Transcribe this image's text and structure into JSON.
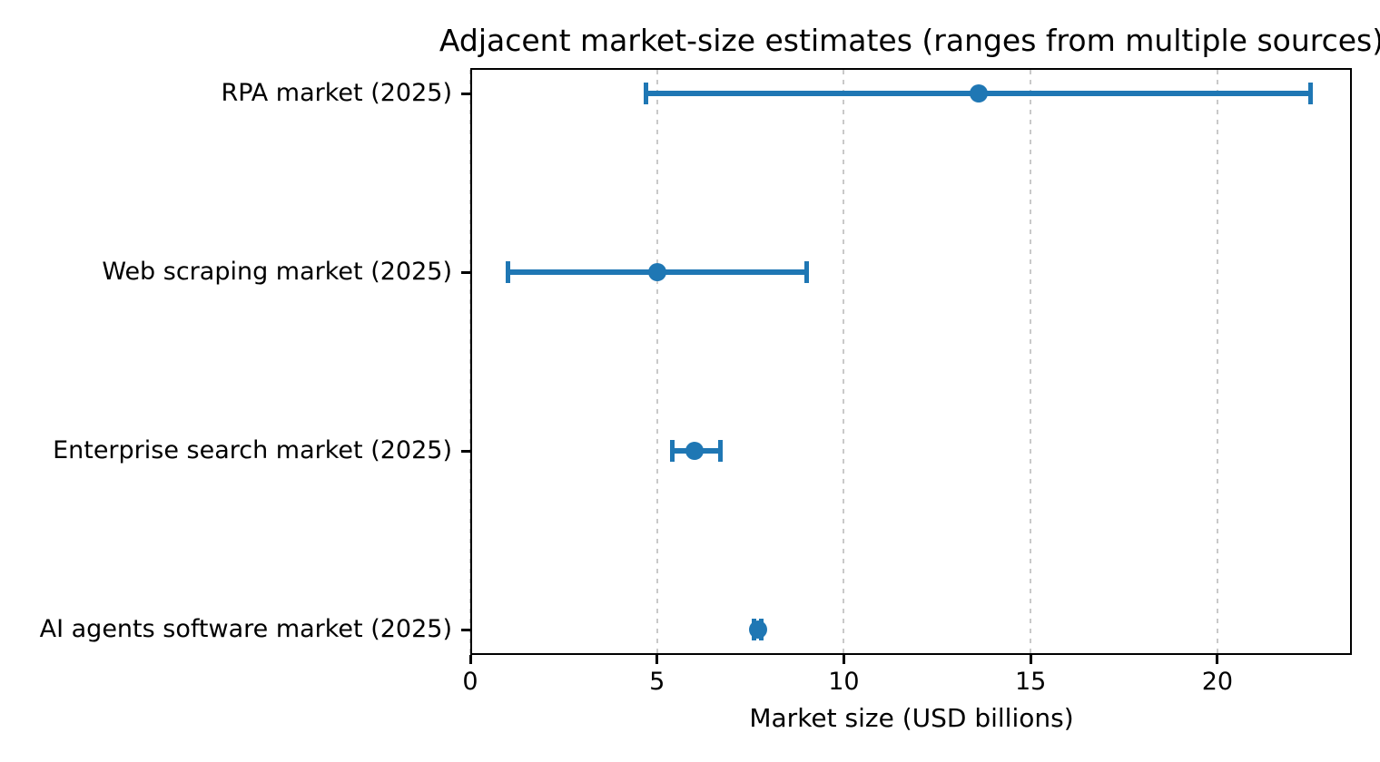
{
  "chart_data": {
    "type": "scatter",
    "subtype": "horizontal-error-bar",
    "title": "Adjacent market-size estimates (ranges from multiple sources)",
    "xlabel": "Market size (USD billions)",
    "ylabel": "",
    "categories": [
      "RPA market (2025)",
      "Web scraping market (2025)",
      "Enterprise search market (2025)",
      "AI agents software market (2025)"
    ],
    "points": [
      {
        "label": "RPA market (2025)",
        "low": 4.7,
        "mid": 13.6,
        "high": 22.5
      },
      {
        "label": "Web scraping market (2025)",
        "low": 1.0,
        "mid": 5.0,
        "high": 9.0
      },
      {
        "label": "Enterprise search market (2025)",
        "low": 5.4,
        "mid": 6.0,
        "high": 6.7
      },
      {
        "label": "AI agents software market (2025)",
        "low": 7.6,
        "mid": 7.7,
        "high": 7.8
      }
    ],
    "x_ticks": [
      0,
      5,
      10,
      15,
      20
    ],
    "x_tick_labels": [
      "0",
      "5",
      "10",
      "15",
      "20"
    ],
    "xlim": [
      0,
      23.6
    ],
    "grid": {
      "axis": "x",
      "style": "dashed",
      "color": "#c9c9c9"
    },
    "legend_position": "none",
    "marker_color": "#1f77b4"
  }
}
